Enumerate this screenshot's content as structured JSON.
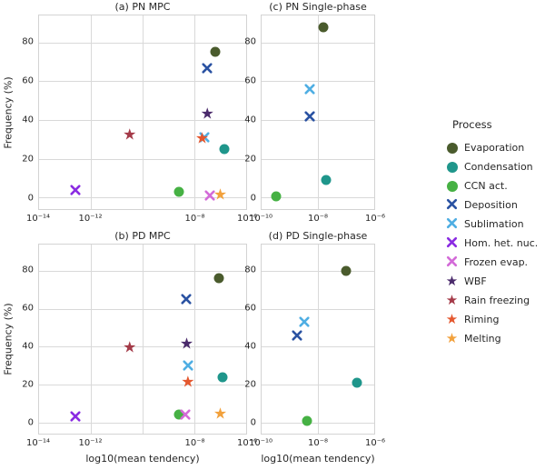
{
  "legend": {
    "title": "Process",
    "entries": [
      {
        "label": "Evaporation",
        "marker": "circle",
        "color": "#4a5b2d"
      },
      {
        "label": "Condensation",
        "marker": "circle",
        "color": "#1f968b"
      },
      {
        "label": "CCN act.",
        "marker": "circle",
        "color": "#46b144"
      },
      {
        "label": "Deposition",
        "marker": "x",
        "color": "#2a52a2"
      },
      {
        "label": "Sublimation",
        "marker": "x",
        "color": "#4faee3"
      },
      {
        "label": "Hom. het. nuc.",
        "marker": "x",
        "color": "#8a2be2"
      },
      {
        "label": "Frozen evap.",
        "marker": "x",
        "color": "#d36bd8"
      },
      {
        "label": "WBF",
        "marker": "star",
        "color": "#4a2a6b"
      },
      {
        "label": "Rain freezing",
        "marker": "star",
        "color": "#a43a48"
      },
      {
        "label": "Riming",
        "marker": "star",
        "color": "#e4572e"
      },
      {
        "label": "Melting",
        "marker": "star",
        "color": "#f2a13c"
      }
    ]
  },
  "chart_data": [
    {
      "id": "a",
      "type": "scatter",
      "title": "(a) PN MPC",
      "xlabel": "",
      "ylabel": "Frequency (%)",
      "xscale": "log10",
      "xlim": [
        -14,
        -6
      ],
      "ylim": [
        -6,
        94
      ],
      "grid": true,
      "legend_position": "right-outside",
      "xticks": [
        {
          "v": -14,
          "label": "10⁻¹⁴"
        },
        {
          "v": -12,
          "label": "10⁻¹²"
        },
        {
          "v": -8,
          "label": "10⁻⁸"
        },
        {
          "v": -6,
          "label": "10⁻⁶"
        }
      ],
      "grid_x": [
        -12,
        -10,
        -8
      ],
      "yticks": [
        0,
        20,
        40,
        60,
        80
      ],
      "points": [
        {
          "process": "Evaporation",
          "logx": -7.2,
          "y": 75
        },
        {
          "process": "Condensation",
          "logx": -6.85,
          "y": 25
        },
        {
          "process": "CCN act.",
          "logx": -8.6,
          "y": 3
        },
        {
          "process": "Deposition",
          "logx": -7.5,
          "y": 67
        },
        {
          "process": "Sublimation",
          "logx": -7.6,
          "y": 31
        },
        {
          "process": "Hom. het. nuc.",
          "logx": -12.6,
          "y": 4
        },
        {
          "process": "Frozen evap.",
          "logx": -7.4,
          "y": 1
        },
        {
          "process": "WBF",
          "logx": -7.5,
          "y": 43
        },
        {
          "process": "Rain freezing",
          "logx": -10.5,
          "y": 32
        },
        {
          "process": "Riming",
          "logx": -7.7,
          "y": 30
        },
        {
          "process": "Melting",
          "logx": -7.0,
          "y": 1
        }
      ]
    },
    {
      "id": "c",
      "type": "scatter",
      "title": "(c) PN Single-phase",
      "xlabel": "",
      "ylabel": "",
      "xscale": "log10",
      "xlim": [
        -10,
        -6
      ],
      "ylim": [
        -6,
        94
      ],
      "grid": true,
      "xticks": [
        {
          "v": -10,
          "label": "10⁻¹⁰"
        },
        {
          "v": -8,
          "label": "10⁻⁸"
        },
        {
          "v": -6,
          "label": "10⁻⁶"
        }
      ],
      "grid_x": [
        -8
      ],
      "yticks": [
        0,
        20,
        40,
        60,
        80
      ],
      "points": [
        {
          "process": "Evaporation",
          "logx": -7.8,
          "y": 88
        },
        {
          "process": "Condensation",
          "logx": -7.7,
          "y": 9
        },
        {
          "process": "CCN act.",
          "logx": -9.5,
          "y": 0.5
        },
        {
          "process": "Deposition",
          "logx": -8.3,
          "y": 42
        },
        {
          "process": "Sublimation",
          "logx": -8.3,
          "y": 56
        }
      ]
    },
    {
      "id": "b",
      "type": "scatter",
      "title": "(b) PD MPC",
      "xlabel": "log10(mean tendency)",
      "ylabel": "Frequency (%)",
      "xscale": "log10",
      "xlim": [
        -14,
        -6
      ],
      "ylim": [
        -6,
        94
      ],
      "grid": true,
      "xticks": [
        {
          "v": -14,
          "label": "10⁻¹⁴"
        },
        {
          "v": -12,
          "label": "10⁻¹²"
        },
        {
          "v": -8,
          "label": "10⁻⁸"
        },
        {
          "v": -6,
          "label": "10⁻⁶"
        }
      ],
      "grid_x": [
        -12,
        -10,
        -8
      ],
      "yticks": [
        0,
        20,
        40,
        60,
        80
      ],
      "points": [
        {
          "process": "Evaporation",
          "logx": -7.05,
          "y": 76
        },
        {
          "process": "Condensation",
          "logx": -6.9,
          "y": 24
        },
        {
          "process": "CCN act.",
          "logx": -8.6,
          "y": 4
        },
        {
          "process": "Deposition",
          "logx": -8.3,
          "y": 65
        },
        {
          "process": "Sublimation",
          "logx": -8.25,
          "y": 30
        },
        {
          "process": "Hom. het. nuc.",
          "logx": -12.6,
          "y": 3
        },
        {
          "process": "Frozen evap.",
          "logx": -8.35,
          "y": 4
        },
        {
          "process": "WBF",
          "logx": -8.3,
          "y": 41
        },
        {
          "process": "Rain freezing",
          "logx": -10.5,
          "y": 39
        },
        {
          "process": "Riming",
          "logx": -8.25,
          "y": 21
        },
        {
          "process": "Melting",
          "logx": -7.0,
          "y": 4
        }
      ]
    },
    {
      "id": "d",
      "type": "scatter",
      "title": "(d) PD Single-phase",
      "xlabel": "log10(mean tendency)",
      "ylabel": "",
      "xscale": "log10",
      "xlim": [
        -10,
        -6
      ],
      "ylim": [
        -6,
        94
      ],
      "grid": true,
      "xticks": [
        {
          "v": -10,
          "label": "10⁻¹⁰"
        },
        {
          "v": -8,
          "label": "10⁻⁸"
        },
        {
          "v": -6,
          "label": "10⁻⁶"
        }
      ],
      "grid_x": [
        -8
      ],
      "yticks": [
        0,
        20,
        40,
        60,
        80
      ],
      "points": [
        {
          "process": "Evaporation",
          "logx": -7.0,
          "y": 80
        },
        {
          "process": "Condensation",
          "logx": -6.6,
          "y": 21
        },
        {
          "process": "CCN act.",
          "logx": -8.4,
          "y": 0.5
        },
        {
          "process": "Deposition",
          "logx": -8.75,
          "y": 46
        },
        {
          "process": "Sublimation",
          "logx": -8.5,
          "y": 53
        }
      ]
    }
  ]
}
